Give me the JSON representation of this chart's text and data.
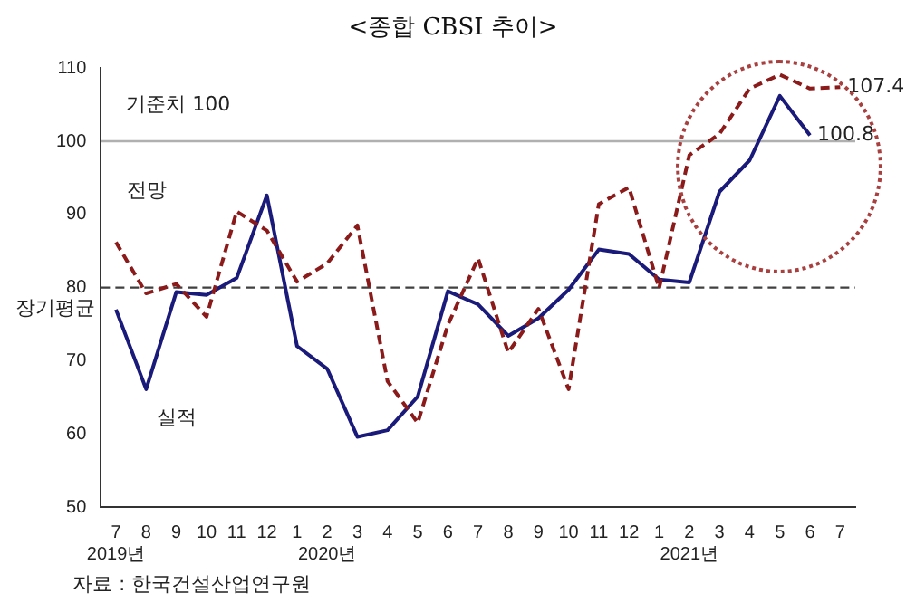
{
  "chart_data": {
    "type": "line",
    "title": "<종합 CBSI 추이>",
    "categories": [
      "7\n2019년",
      "8",
      "9",
      "10",
      "11",
      "12",
      "1",
      "2\n2020년",
      "3",
      "4",
      "5",
      "6",
      "7",
      "8",
      "9",
      "10",
      "11",
      "12",
      "1",
      "2\n2021년",
      "3",
      "4",
      "5",
      "6",
      "7"
    ],
    "series": [
      {
        "name": "전망",
        "color": "#8b1a1a",
        "line_style": "dashed",
        "values": [
          86.2,
          79.2,
          80.5,
          76.0,
          90.4,
          87.8,
          80.8,
          83.3,
          88.5,
          67.2,
          61.5,
          74.9,
          84.0,
          71.1,
          77.1,
          66.1,
          91.4,
          93.7,
          79.9,
          98.1,
          101.0,
          107.2,
          109.1,
          107.2,
          107.4
        ],
        "value_labels": [
          null,
          null,
          null,
          null,
          null,
          null,
          null,
          null,
          null,
          null,
          null,
          null,
          null,
          null,
          null,
          null,
          null,
          null,
          null,
          null,
          null,
          null,
          null,
          null,
          "107.4"
        ]
      },
      {
        "name": "실적",
        "color": "#1a1a7a",
        "line_style": "solid",
        "values": [
          77.0,
          66.1,
          79.4,
          79.0,
          81.3,
          92.6,
          72.0,
          68.9,
          59.6,
          60.5,
          65.1,
          79.5,
          77.7,
          73.4,
          75.8,
          79.7,
          85.2,
          84.6,
          81.1,
          80.7,
          93.1,
          97.4,
          106.2,
          100.8,
          null
        ],
        "value_labels": [
          null,
          null,
          null,
          null,
          null,
          null,
          null,
          null,
          null,
          null,
          null,
          null,
          null,
          null,
          null,
          null,
          null,
          null,
          null,
          null,
          null,
          null,
          null,
          "100.8",
          null
        ]
      }
    ],
    "ylim": [
      50,
      110
    ],
    "yticks": [
      50,
      60,
      70,
      80,
      90,
      100,
      110
    ],
    "ref_lines": [
      {
        "axis": "y",
        "value": 100,
        "label": "기준치 100",
        "color": "#b0b0b0",
        "line_style": "solid"
      },
      {
        "axis": "y",
        "value": 80,
        "label": "장기평균",
        "color": "#404040",
        "line_style": "dashed"
      }
    ],
    "annotations": [
      "자료 : 한국건설산업연구원"
    ],
    "grid": false,
    "legend": false,
    "marker": "none"
  }
}
